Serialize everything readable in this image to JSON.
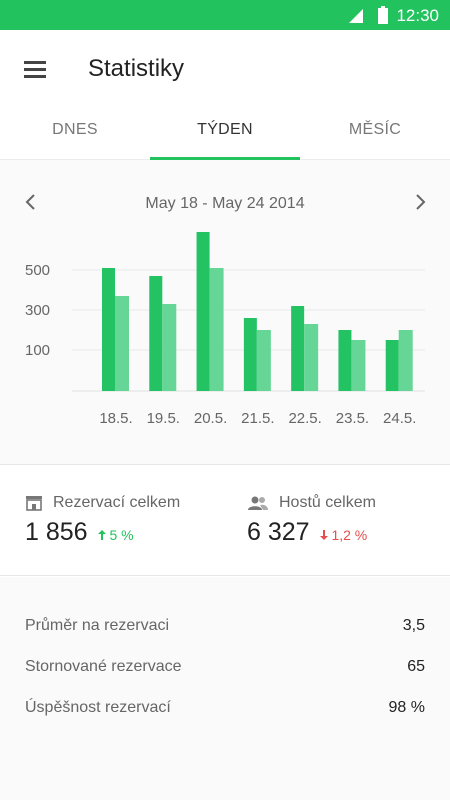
{
  "status_bar": {
    "time": "12:30"
  },
  "app_bar": {
    "title": "Statistiky"
  },
  "tabs": [
    {
      "label": "DNES"
    },
    {
      "label": "TÝDEN"
    },
    {
      "label": "MĚSÍC"
    }
  ],
  "active_tab": "TÝDEN",
  "date_range": "May 18 - May 24 2014",
  "colors": {
    "accent": "#22c25f",
    "bar_primary": "#23c364",
    "bar_secondary": "#66d696",
    "up": "#22c25f",
    "down": "#e84c4c"
  },
  "chart_data": {
    "type": "bar",
    "categories": [
      "18.5.",
      "19.5.",
      "20.5.",
      "21.5.",
      "22.5.",
      "23.5.",
      "24.5."
    ],
    "series": [
      {
        "values": [
          510,
          470,
          690,
          260,
          320,
          200,
          150
        ]
      },
      {
        "values": [
          370,
          330,
          510,
          200,
          230,
          150,
          200
        ]
      }
    ],
    "y_ticks": [
      "500",
      "300",
      "100"
    ],
    "ylim": [
      0,
      700
    ],
    "grid": true
  },
  "summary": {
    "reservations": {
      "label": "Rezervací celkem",
      "value": "1 856",
      "change": "5 %",
      "direction": "up"
    },
    "guests": {
      "label": "Hostů celkem",
      "value": "6 327",
      "change": "1,2 %",
      "direction": "down"
    }
  },
  "details": [
    {
      "label": "Průměr na rezervaci",
      "value": "3,5"
    },
    {
      "label": "Stornované rezervace",
      "value": "65"
    },
    {
      "label": "Úspěšnost rezervací",
      "value": "98 %"
    }
  ]
}
